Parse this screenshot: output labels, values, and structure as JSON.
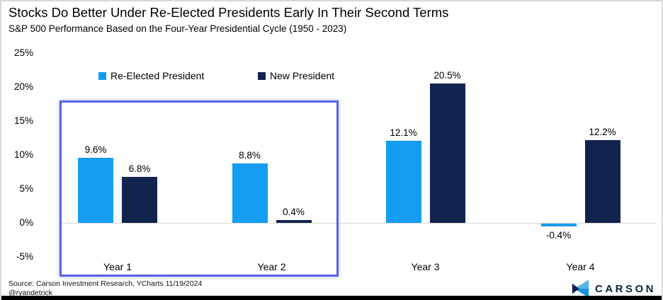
{
  "header": {
    "title": "Stocks Do Better Under Re-Elected Presidents Early In Their Second Terms",
    "subtitle": "S&P 500 Performance Based on the Four-Year Presidential Cycle (1950 - 2023)"
  },
  "legend": {
    "items": [
      {
        "label": "Re-Elected President",
        "color": "#149df2"
      },
      {
        "label": "New President",
        "color": "#12234e"
      }
    ]
  },
  "chart_data": {
    "type": "bar",
    "categories": [
      "Year 1",
      "Year 2",
      "Year 3",
      "Year 4"
    ],
    "series": [
      {
        "name": "Re-Elected President",
        "color": "#149df2",
        "values": [
          9.6,
          8.8,
          12.1,
          -0.4
        ]
      },
      {
        "name": "New President",
        "color": "#12234e",
        "values": [
          6.8,
          0.4,
          20.5,
          12.2
        ]
      }
    ],
    "value_labels": [
      [
        "9.6%",
        "8.8%",
        "12.1%",
        "-0.4%"
      ],
      [
        "6.8%",
        "0.4%",
        "20.5%",
        "12.2%"
      ]
    ],
    "title": "Stocks Do Better Under Re-Elected Presidents Early In Their Second Terms",
    "subtitle": "S&P 500 Performance Based on the Four-Year Presidential Cycle (1950 - 2023)",
    "xlabel": "",
    "ylabel": "",
    "yticks": [
      25,
      20,
      15,
      10,
      5,
      0,
      -5
    ],
    "ytick_labels": [
      "25%",
      "20%",
      "15%",
      "10%",
      "5%",
      "0%",
      "-5%"
    ],
    "ylim": [
      -5,
      25
    ],
    "grid": "zero-line-only",
    "legend_position": "top-left-inside",
    "annotation": "blue highlight box around Year 1 and Year 2 groups"
  },
  "footer": {
    "source_line1": "Source: Carson Investment Research, YCharts 11/19/2024",
    "source_line2": "@ryandetrick",
    "brand": "CARSON"
  },
  "colors": {
    "reelected_blue": "#149df2",
    "new_president_navy": "#12234e",
    "highlight_border": "#5a63e6",
    "zero_gridline": "#d9d9d9",
    "brand_navy": "#0a2240"
  }
}
